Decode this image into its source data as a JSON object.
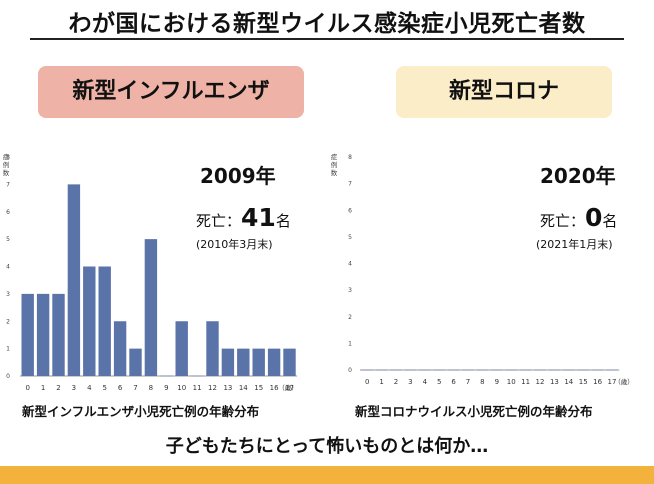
{
  "title": "わが国における新型ウイルス感染症小児死亡者数",
  "question": "子どもたちにとって怖いものとは何か…",
  "colors": {
    "bar": "#5a73a8",
    "flu_pill": "#eeb3a6",
    "covid_pill": "#fbedc8",
    "footer": "#f3b23c"
  },
  "panels": [
    {
      "label": "新型インフルエンザ",
      "year": "2009年",
      "deaths_prefix": "死亡：",
      "deaths_value": "41",
      "deaths_unit": "名",
      "as_of": "(2010年3月末)",
      "caption": "新型インフルエンザ小児死亡例の年齢分布"
    },
    {
      "label": "新型コロナ",
      "year": "2020年",
      "deaths_prefix": "死亡：",
      "deaths_value": "0",
      "deaths_unit": "名",
      "as_of": "(2021年1月末)",
      "caption": "新型コロナウイルス小児死亡例の年齢分布"
    }
  ],
  "chart_data": [
    {
      "type": "bar",
      "categories": [
        "0",
        "1",
        "2",
        "3",
        "4",
        "5",
        "6",
        "7",
        "8",
        "9",
        "10",
        "11",
        "12",
        "13",
        "14",
        "15",
        "16",
        "17"
      ],
      "values": [
        3,
        3,
        3,
        7,
        4,
        4,
        2,
        1,
        5,
        0,
        2,
        0,
        2,
        1,
        1,
        1,
        1,
        1
      ],
      "ylabel": "症例数",
      "xunit": "（歳）",
      "yticks": [
        0,
        1,
        2,
        3,
        4,
        5,
        6,
        7,
        8
      ],
      "ylim": [
        0,
        8
      ]
    },
    {
      "type": "bar",
      "categories": [
        "0",
        "1",
        "2",
        "3",
        "4",
        "5",
        "6",
        "7",
        "8",
        "9",
        "10",
        "11",
        "12",
        "13",
        "14",
        "15",
        "16",
        "17"
      ],
      "values": [
        0,
        0,
        0,
        0,
        0,
        0,
        0,
        0,
        0,
        0,
        0,
        0,
        0,
        0,
        0,
        0,
        0,
        0
      ],
      "ylabel": "症例数",
      "xunit": "（歳）",
      "yticks": [
        0,
        1,
        2,
        3,
        4,
        5,
        6,
        7,
        8
      ],
      "ylim": [
        0,
        8
      ]
    }
  ]
}
